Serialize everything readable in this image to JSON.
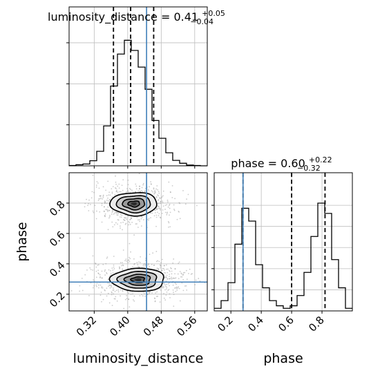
{
  "chart_data": {
    "type": "corner",
    "parameters": [
      "luminosity_distance",
      "phase"
    ],
    "titles": {
      "luminosity_distance": {
        "prefix": "luminosity_distance = 0.41",
        "plus": "+0.05",
        "minus": "−0.04"
      },
      "phase": {
        "prefix": "phase = 0.60",
        "plus": "+0.22",
        "minus": "−0.32"
      }
    },
    "axis_labels": {
      "x_left": "luminosity_distance",
      "x_right": "phase",
      "y_lower": "phase"
    },
    "ranges": {
      "luminosity_distance": [
        0.26,
        0.59
      ],
      "phase": [
        0.09,
        1.0
      ]
    },
    "ticks": {
      "luminosity_distance": [
        {
          "v": 0.32,
          "label": "0.32"
        },
        {
          "v": 0.4,
          "label": "0.40"
        },
        {
          "v": 0.48,
          "label": "0.48"
        },
        {
          "v": 0.56,
          "label": "0.56"
        }
      ],
      "phase": [
        {
          "v": 0.2,
          "label": "0.2"
        },
        {
          "v": 0.4,
          "label": "0.4"
        },
        {
          "v": 0.6,
          "label": "0.6"
        },
        {
          "v": 0.8,
          "label": "0.8"
        }
      ]
    },
    "truths": {
      "luminosity_distance": 0.445,
      "phase": 0.28
    },
    "quantiles": {
      "luminosity_distance": [
        0.366,
        0.407,
        0.462
      ],
      "phase": [
        0.28,
        0.6,
        0.82
      ]
    },
    "hist_luminosity_distance": {
      "edges": [
        0.26,
        0.2765,
        0.293,
        0.3095,
        0.326,
        0.3425,
        0.359,
        0.3755,
        0.392,
        0.4085,
        0.425,
        0.4415,
        0.458,
        0.4745,
        0.491,
        0.5075,
        0.524,
        0.5405,
        0.557,
        0.5735,
        0.59
      ],
      "counts": [
        1,
        3,
        5,
        14,
        40,
        110,
        220,
        308,
        346,
        318,
        272,
        211,
        125,
        76,
        36,
        15,
        7,
        2,
        1,
        0
      ]
    },
    "hist_phase": {
      "edges": [
        0.09,
        0.1355,
        0.181,
        0.2265,
        0.272,
        0.3175,
        0.363,
        0.4085,
        0.454,
        0.4995,
        0.545,
        0.5905,
        0.636,
        0.6815,
        0.727,
        0.7725,
        0.818,
        0.8635,
        0.909,
        0.9545,
        1.0
      ],
      "counts": [
        5,
        20,
        55,
        130,
        200,
        175,
        90,
        45,
        20,
        10,
        5,
        10,
        30,
        75,
        145,
        210,
        190,
        100,
        45,
        5
      ]
    },
    "joint_modes": [
      {
        "x": 0.415,
        "y": 0.795,
        "sx": 0.028,
        "sy": 0.038
      },
      {
        "x": 0.425,
        "y": 0.295,
        "sx": 0.032,
        "sy": 0.038
      }
    ]
  }
}
